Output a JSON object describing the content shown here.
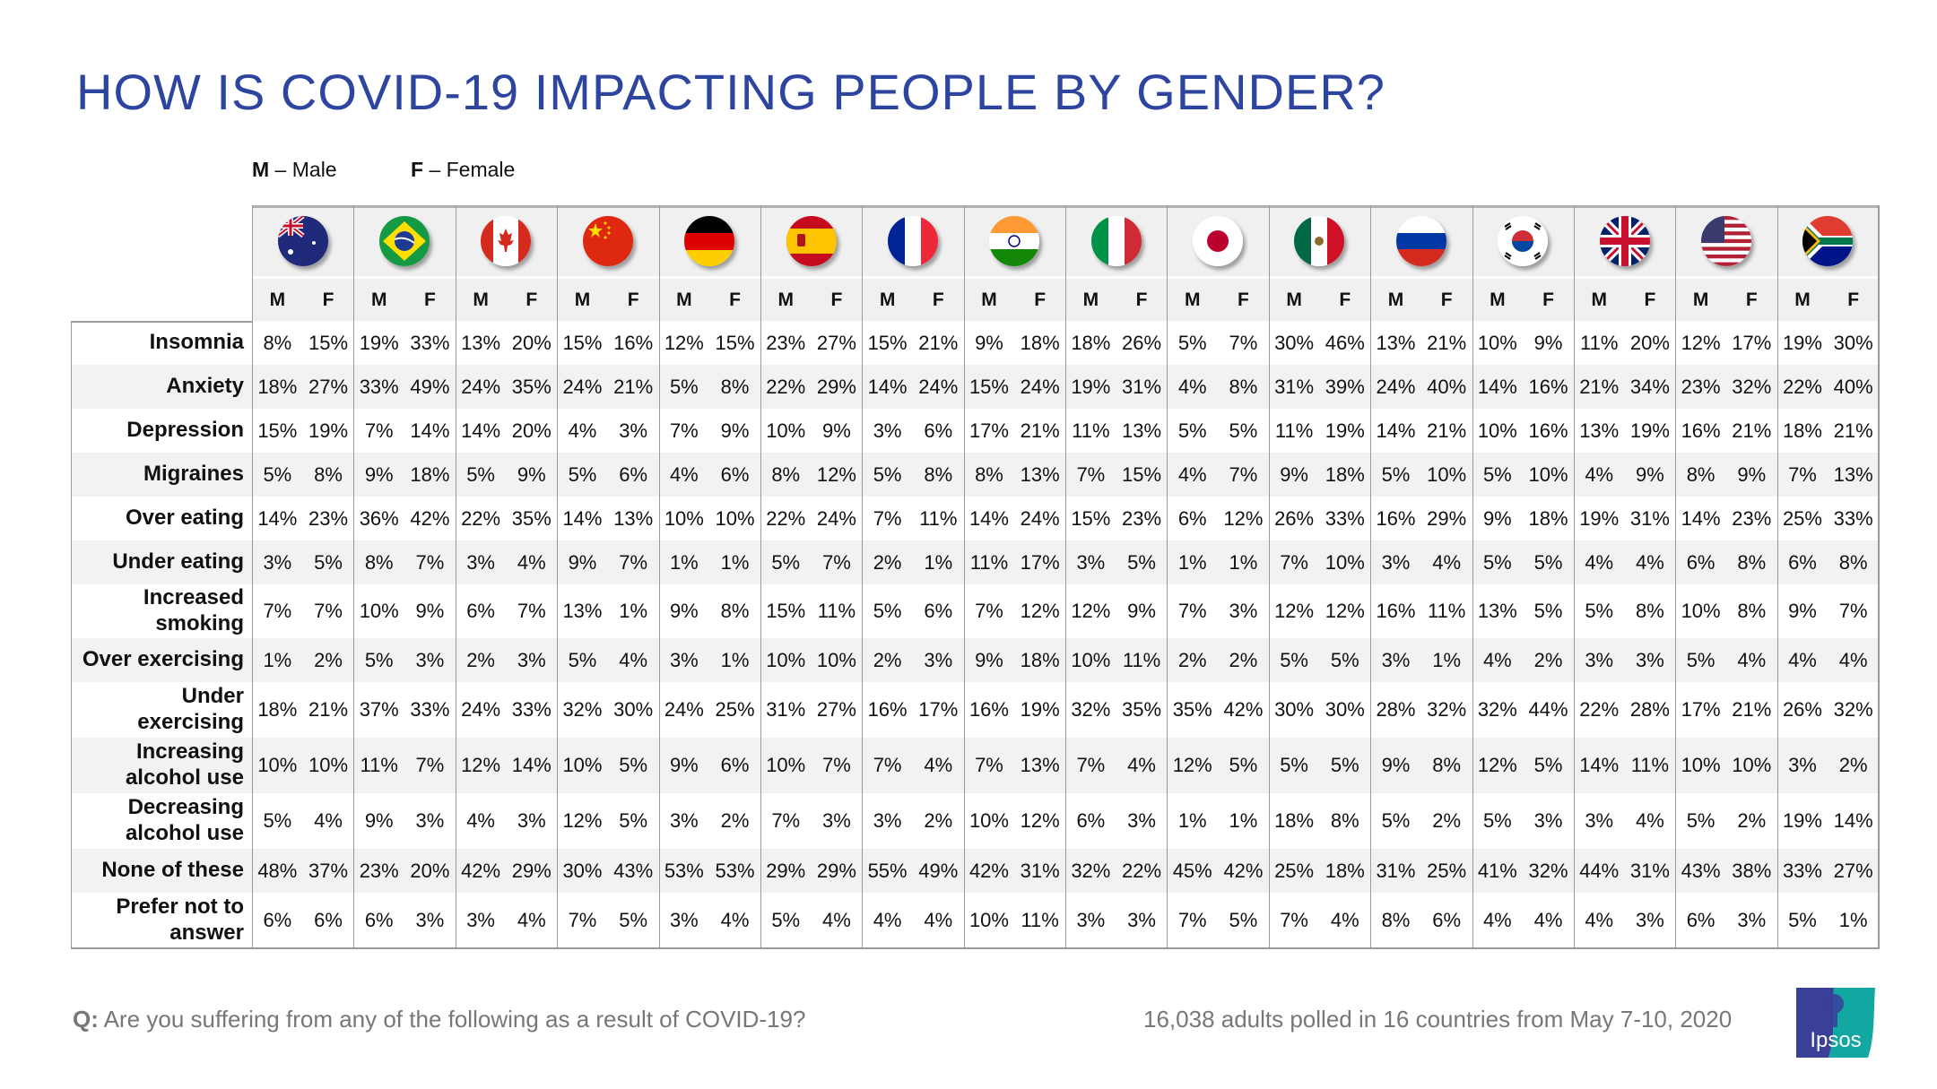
{
  "header": {
    "title": "HOW IS COVID-19 IMPACTING PEOPLE BY GENDER?",
    "legend": {
      "m_key": "M",
      "m_text": " – Male",
      "f_key": "F",
      "f_text": " – Female"
    }
  },
  "table": {
    "countries": [
      {
        "name": "Australia",
        "flag": "australia-flag"
      },
      {
        "name": "Brazil",
        "flag": "brazil-flag"
      },
      {
        "name": "Canada",
        "flag": "canada-flag"
      },
      {
        "name": "China",
        "flag": "china-flag"
      },
      {
        "name": "Germany",
        "flag": "germany-flag"
      },
      {
        "name": "Spain",
        "flag": "spain-flag"
      },
      {
        "name": "France",
        "flag": "france-flag"
      },
      {
        "name": "India",
        "flag": "india-flag"
      },
      {
        "name": "Italy",
        "flag": "italy-flag"
      },
      {
        "name": "Japan",
        "flag": "japan-flag"
      },
      {
        "name": "Mexico",
        "flag": "mexico-flag"
      },
      {
        "name": "Russia",
        "flag": "russia-flag"
      },
      {
        "name": "South Korea",
        "flag": "south-korea-flag"
      },
      {
        "name": "Great Britain",
        "flag": "great-britain-flag"
      },
      {
        "name": "United States",
        "flag": "united-states-flag"
      },
      {
        "name": "South Africa",
        "flag": "south-africa-flag"
      }
    ],
    "gender_labels": {
      "m": "M",
      "f": "F"
    }
  },
  "chart_data": {
    "type": "table",
    "title": "HOW IS COVID-19 IMPACTING PEOPLE BY GENDER?",
    "legend": {
      "M": "Male",
      "F": "Female"
    },
    "columns": [
      "Australia",
      "Brazil",
      "Canada",
      "China",
      "Germany",
      "Spain",
      "France",
      "India",
      "Italy",
      "Japan",
      "Mexico",
      "Russia",
      "South Korea",
      "Great Britain",
      "United States",
      "South Africa"
    ],
    "subcolumns": [
      "M",
      "F"
    ],
    "unit": "%",
    "rows": [
      {
        "label": "Insomnia",
        "values": [
          [
            8,
            15
          ],
          [
            19,
            33
          ],
          [
            13,
            20
          ],
          [
            15,
            16
          ],
          [
            12,
            15
          ],
          [
            23,
            27
          ],
          [
            15,
            21
          ],
          [
            9,
            18
          ],
          [
            18,
            26
          ],
          [
            5,
            7
          ],
          [
            30,
            46
          ],
          [
            13,
            21
          ],
          [
            10,
            9
          ],
          [
            11,
            20
          ],
          [
            12,
            17
          ],
          [
            19,
            30
          ]
        ]
      },
      {
        "label": "Anxiety",
        "values": [
          [
            18,
            27
          ],
          [
            33,
            49
          ],
          [
            24,
            35
          ],
          [
            24,
            21
          ],
          [
            5,
            8
          ],
          [
            22,
            29
          ],
          [
            14,
            24
          ],
          [
            15,
            24
          ],
          [
            19,
            31
          ],
          [
            4,
            8
          ],
          [
            31,
            39
          ],
          [
            24,
            40
          ],
          [
            14,
            16
          ],
          [
            21,
            34
          ],
          [
            23,
            32
          ],
          [
            22,
            40
          ]
        ]
      },
      {
        "label": "Depression",
        "values": [
          [
            15,
            19
          ],
          [
            7,
            14
          ],
          [
            14,
            20
          ],
          [
            4,
            3
          ],
          [
            7,
            9
          ],
          [
            10,
            9
          ],
          [
            3,
            6
          ],
          [
            17,
            21
          ],
          [
            11,
            13
          ],
          [
            5,
            5
          ],
          [
            11,
            19
          ],
          [
            14,
            21
          ],
          [
            10,
            16
          ],
          [
            13,
            19
          ],
          [
            16,
            21
          ],
          [
            18,
            21
          ]
        ]
      },
      {
        "label": "Migraines",
        "values": [
          [
            5,
            8
          ],
          [
            9,
            18
          ],
          [
            5,
            9
          ],
          [
            5,
            6
          ],
          [
            4,
            6
          ],
          [
            8,
            12
          ],
          [
            5,
            8
          ],
          [
            8,
            13
          ],
          [
            7,
            15
          ],
          [
            4,
            7
          ],
          [
            9,
            18
          ],
          [
            5,
            10
          ],
          [
            5,
            10
          ],
          [
            4,
            9
          ],
          [
            8,
            9
          ],
          [
            7,
            13
          ]
        ]
      },
      {
        "label": "Over eating",
        "values": [
          [
            14,
            23
          ],
          [
            36,
            42
          ],
          [
            22,
            35
          ],
          [
            14,
            13
          ],
          [
            10,
            10
          ],
          [
            22,
            24
          ],
          [
            7,
            11
          ],
          [
            14,
            24
          ],
          [
            15,
            23
          ],
          [
            6,
            12
          ],
          [
            26,
            33
          ],
          [
            16,
            29
          ],
          [
            9,
            18
          ],
          [
            19,
            31
          ],
          [
            14,
            23
          ],
          [
            25,
            33
          ]
        ]
      },
      {
        "label": "Under eating",
        "values": [
          [
            3,
            5
          ],
          [
            8,
            7
          ],
          [
            3,
            4
          ],
          [
            9,
            7
          ],
          [
            1,
            1
          ],
          [
            5,
            7
          ],
          [
            2,
            1
          ],
          [
            11,
            17
          ],
          [
            3,
            5
          ],
          [
            1,
            1
          ],
          [
            7,
            10
          ],
          [
            3,
            4
          ],
          [
            5,
            5
          ],
          [
            4,
            4
          ],
          [
            6,
            8
          ],
          [
            6,
            8
          ]
        ]
      },
      {
        "label": "Increased\nsmoking",
        "values": [
          [
            7,
            7
          ],
          [
            10,
            9
          ],
          [
            6,
            7
          ],
          [
            13,
            1
          ],
          [
            9,
            8
          ],
          [
            15,
            11
          ],
          [
            5,
            6
          ],
          [
            7,
            12
          ],
          [
            12,
            9
          ],
          [
            7,
            3
          ],
          [
            12,
            12
          ],
          [
            16,
            11
          ],
          [
            13,
            5
          ],
          [
            5,
            8
          ],
          [
            10,
            8
          ],
          [
            9,
            7
          ]
        ]
      },
      {
        "label": "Over exercising",
        "values": [
          [
            1,
            2
          ],
          [
            5,
            3
          ],
          [
            2,
            3
          ],
          [
            5,
            4
          ],
          [
            3,
            1
          ],
          [
            10,
            10
          ],
          [
            2,
            3
          ],
          [
            9,
            18
          ],
          [
            10,
            11
          ],
          [
            2,
            2
          ],
          [
            5,
            5
          ],
          [
            3,
            1
          ],
          [
            4,
            2
          ],
          [
            3,
            3
          ],
          [
            5,
            4
          ],
          [
            4,
            4
          ]
        ]
      },
      {
        "label": "Under\nexercising",
        "values": [
          [
            18,
            21
          ],
          [
            37,
            33
          ],
          [
            24,
            33
          ],
          [
            32,
            30
          ],
          [
            24,
            25
          ],
          [
            31,
            27
          ],
          [
            16,
            17
          ],
          [
            16,
            19
          ],
          [
            32,
            35
          ],
          [
            35,
            42
          ],
          [
            30,
            30
          ],
          [
            28,
            32
          ],
          [
            32,
            44
          ],
          [
            22,
            28
          ],
          [
            17,
            21
          ],
          [
            26,
            32
          ]
        ]
      },
      {
        "label": "Increasing\nalcohol use",
        "values": [
          [
            10,
            10
          ],
          [
            11,
            7
          ],
          [
            12,
            14
          ],
          [
            10,
            5
          ],
          [
            9,
            6
          ],
          [
            10,
            7
          ],
          [
            7,
            4
          ],
          [
            7,
            13
          ],
          [
            7,
            4
          ],
          [
            12,
            5
          ],
          [
            5,
            5
          ],
          [
            9,
            8
          ],
          [
            12,
            5
          ],
          [
            14,
            11
          ],
          [
            10,
            10
          ],
          [
            3,
            2
          ]
        ]
      },
      {
        "label": "Decreasing\nalcohol use",
        "values": [
          [
            5,
            4
          ],
          [
            9,
            3
          ],
          [
            4,
            3
          ],
          [
            12,
            5
          ],
          [
            3,
            2
          ],
          [
            7,
            3
          ],
          [
            3,
            2
          ],
          [
            10,
            12
          ],
          [
            6,
            3
          ],
          [
            1,
            1
          ],
          [
            18,
            8
          ],
          [
            5,
            2
          ],
          [
            5,
            3
          ],
          [
            3,
            4
          ],
          [
            5,
            2
          ],
          [
            19,
            14
          ]
        ]
      },
      {
        "label": "None of these",
        "values": [
          [
            48,
            37
          ],
          [
            23,
            20
          ],
          [
            42,
            29
          ],
          [
            30,
            43
          ],
          [
            53,
            53
          ],
          [
            29,
            29
          ],
          [
            55,
            49
          ],
          [
            42,
            31
          ],
          [
            32,
            22
          ],
          [
            45,
            42
          ],
          [
            25,
            18
          ],
          [
            31,
            25
          ],
          [
            41,
            32
          ],
          [
            44,
            31
          ],
          [
            43,
            38
          ],
          [
            33,
            27
          ]
        ]
      },
      {
        "label": "Prefer not to\nanswer",
        "values": [
          [
            6,
            6
          ],
          [
            6,
            3
          ],
          [
            3,
            4
          ],
          [
            7,
            5
          ],
          [
            3,
            4
          ],
          [
            5,
            4
          ],
          [
            4,
            4
          ],
          [
            10,
            11
          ],
          [
            3,
            3
          ],
          [
            7,
            5
          ],
          [
            7,
            4
          ],
          [
            8,
            6
          ],
          [
            4,
            4
          ],
          [
            4,
            3
          ],
          [
            6,
            3
          ],
          [
            5,
            1
          ]
        ]
      }
    ]
  },
  "footer": {
    "question_prefix": "Q:",
    "question_text": " Are you suffering from any of the following as a result of COVID-19?",
    "sample_note": "16,038 adults polled in 16 countries from May 7-10, 2020",
    "logo_text": "Ipsos"
  },
  "colors": {
    "title": "#2E45A0",
    "footer_text": "#777777",
    "stripe": "#F2F2F2",
    "header_bg": "#F0F0F0",
    "logo_left": "#3A3F98",
    "logo_right": "#12A7A0"
  }
}
